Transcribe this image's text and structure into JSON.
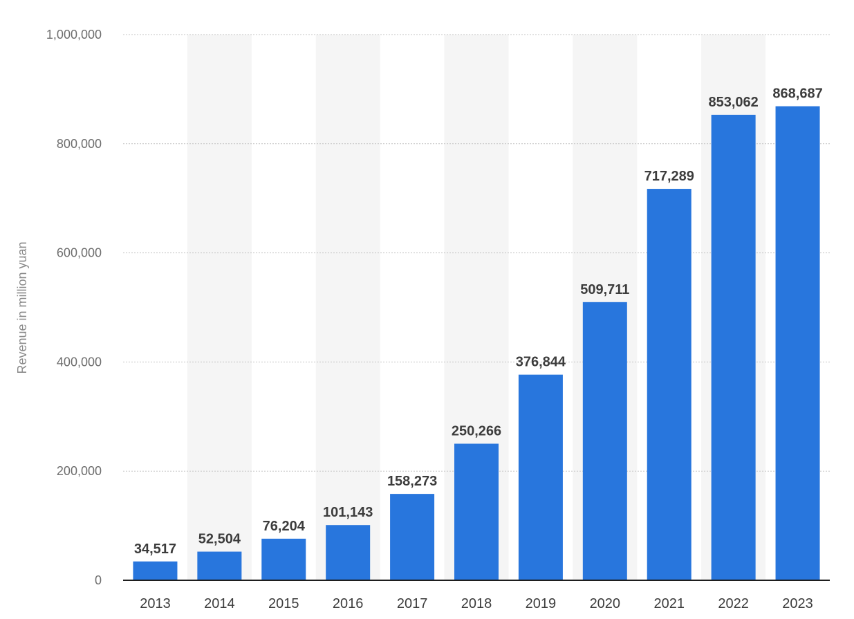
{
  "colors": {
    "bar": "#2876dd",
    "band": "#f5f5f5",
    "axis": "#1e1e1e"
  },
  "chart_data": {
    "type": "bar",
    "title": "",
    "xlabel": "",
    "ylabel": "Revenue in million yuan",
    "ylim": [
      0,
      1000000
    ],
    "yticks": [
      "0",
      "200,000",
      "400,000",
      "600,000",
      "800,000",
      "1,000,000"
    ],
    "grid": true,
    "categories": [
      "2013",
      "2014",
      "2015",
      "2016",
      "2017",
      "2018",
      "2019",
      "2020",
      "2021",
      "2022",
      "2023"
    ],
    "values": [
      34517,
      52504,
      76204,
      101143,
      158273,
      250266,
      376844,
      509711,
      717289,
      853062,
      868687
    ],
    "value_labels": [
      "34,517",
      "52,504",
      "76,204",
      "101,143",
      "158,273",
      "250,266",
      "376,844",
      "509,711",
      "717,289",
      "853,062",
      "868,687"
    ]
  }
}
